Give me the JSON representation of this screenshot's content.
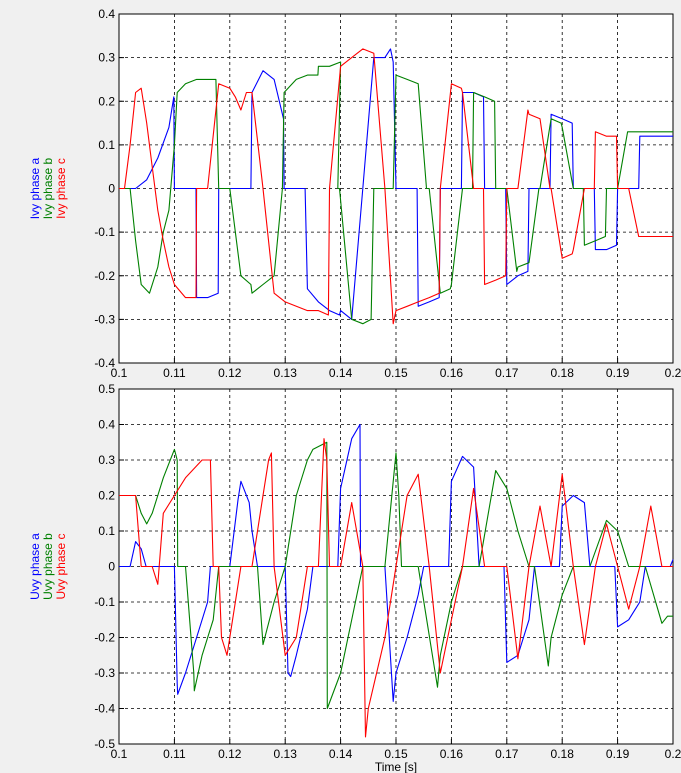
{
  "chart_data": [
    {
      "type": "line",
      "xlim": [
        0.1,
        0.2
      ],
      "ylim": [
        -0.4,
        0.4
      ],
      "xticks": [
        "0.1",
        "0.11",
        "0.12",
        "0.13",
        "0.14",
        "0.15",
        "0.16",
        "0.17",
        "0.18",
        "0.19",
        "0.2"
      ],
      "yticks": [
        "0.4",
        "0.3",
        "0.2",
        "0.1",
        "0",
        "-0.1",
        "-0.2",
        "-0.3",
        "-0.4"
      ],
      "xlabel": "",
      "ylabel_lines": [
        "Ivy phase a",
        "Ivy phase b",
        "Ivy phase c"
      ],
      "grid": true,
      "series": [
        {
          "name": "Ivy phase a",
          "color": "#0000ff",
          "x": [
            0.1,
            0.103,
            0.105,
            0.107,
            0.109,
            0.1099,
            0.11,
            0.112,
            0.1139,
            0.114,
            0.116,
            0.1179,
            0.118,
            0.12,
            0.122,
            0.1238,
            0.124,
            0.126,
            0.128,
            0.1297,
            0.1298,
            0.132,
            0.1336,
            0.134,
            0.136,
            0.138,
            0.1398,
            0.14,
            0.142,
            0.144,
            0.146,
            0.148,
            0.149,
            0.1495,
            0.15,
            0.152,
            0.1538,
            0.154,
            0.156,
            0.1578,
            0.158,
            0.16,
            0.1618,
            0.162,
            0.164,
            0.1658,
            0.166,
            0.168,
            0.1698,
            0.17,
            0.172,
            0.1738,
            0.174,
            0.176,
            0.1778,
            0.178,
            0.18,
            0.1818,
            0.182,
            0.184,
            0.1858,
            0.186,
            0.188,
            0.1898,
            0.19,
            0.192,
            0.1938,
            0.194,
            0.196,
            0.198,
            0.2
          ],
          "y": [
            0,
            0,
            0.02,
            0.07,
            0.14,
            0.21,
            0,
            0,
            0,
            -0.25,
            -0.25,
            -0.24,
            0,
            0,
            0,
            0,
            0.22,
            0.27,
            0.25,
            0.16,
            0,
            0,
            0,
            -0.23,
            -0.26,
            -0.28,
            -0.29,
            -0.28,
            -0.3,
            0,
            0.3,
            0.3,
            0.32,
            0.29,
            0,
            0,
            0,
            -0.27,
            -0.26,
            -0.25,
            0,
            0,
            0,
            0.22,
            0.22,
            0.21,
            0,
            0,
            0,
            -0.22,
            -0.2,
            -0.19,
            0,
            0,
            0,
            0.17,
            0.16,
            0.15,
            0,
            0,
            0,
            -0.14,
            -0.14,
            -0.13,
            0,
            0,
            0,
            0.12,
            0.12,
            0.12,
            0.12
          ]
        },
        {
          "name": "Ivy phase b",
          "color": "#008000",
          "x": [
            0.1,
            0.102,
            0.103,
            0.104,
            0.1055,
            0.107,
            0.108,
            0.109,
            0.11,
            0.1105,
            0.112,
            0.114,
            0.116,
            0.1175,
            0.118,
            0.12,
            0.122,
            0.1238,
            0.124,
            0.126,
            0.128,
            0.1295,
            0.1298,
            0.132,
            0.134,
            0.1359,
            0.136,
            0.138,
            0.14,
            0.1395,
            0.1398,
            0.142,
            0.144,
            0.1455,
            0.146,
            0.148,
            0.1495,
            0.15,
            0.152,
            0.154,
            0.1555,
            0.156,
            0.158,
            0.1598,
            0.16,
            0.162,
            0.1638,
            0.164,
            0.166,
            0.1678,
            0.168,
            0.17,
            0.1718,
            0.172,
            0.174,
            0.1758,
            0.176,
            0.178,
            0.1798,
            0.18,
            0.182,
            0.1838,
            0.184,
            0.186,
            0.1878,
            0.188,
            0.19,
            0.1918,
            0.192,
            0.194,
            0.196,
            0.198,
            0.2
          ],
          "y": [
            0,
            0,
            -0.12,
            -0.22,
            -0.24,
            -0.18,
            -0.1,
            -0.05,
            0.1,
            0.22,
            0.24,
            0.25,
            0.25,
            0.25,
            0,
            0,
            -0.2,
            -0.22,
            -0.24,
            -0.22,
            -0.2,
            0,
            0.22,
            0.25,
            0.26,
            0.26,
            0.28,
            0.28,
            0.29,
            0,
            0,
            -0.3,
            -0.31,
            -0.3,
            0,
            0,
            0,
            0.26,
            0.25,
            0.24,
            0,
            0,
            -0.24,
            -0.23,
            -0.22,
            0,
            0,
            0.22,
            0.21,
            0.2,
            0,
            0,
            -0.19,
            -0.18,
            -0.17,
            0,
            0,
            0.16,
            0.15,
            0.14,
            0,
            0,
            -0.13,
            -0.12,
            -0.11,
            0,
            0,
            0.13,
            0.13,
            0.13,
            0.13,
            0.13,
            0.13
          ]
        },
        {
          "name": "Ivy phase c",
          "color": "#ff0000",
          "x": [
            0.1,
            0.101,
            0.102,
            0.103,
            0.104,
            0.105,
            0.106,
            0.107,
            0.108,
            0.109,
            0.11,
            0.112,
            0.1139,
            0.114,
            0.116,
            0.118,
            0.12,
            0.121,
            0.122,
            0.123,
            0.124,
            0.126,
            0.128,
            0.13,
            0.132,
            0.134,
            0.136,
            0.1378,
            0.138,
            0.14,
            0.142,
            0.144,
            0.146,
            0.148,
            0.1495,
            0.15,
            0.152,
            0.154,
            0.156,
            0.1578,
            0.158,
            0.16,
            0.1618,
            0.162,
            0.164,
            0.1658,
            0.166,
            0.168,
            0.1698,
            0.17,
            0.172,
            0.1738,
            0.174,
            0.176,
            0.1778,
            0.178,
            0.18,
            0.1818,
            0.182,
            0.184,
            0.1858,
            0.186,
            0.188,
            0.1898,
            0.19,
            0.192,
            0.1938,
            0.194,
            0.196,
            0.198,
            0.2
          ],
          "y": [
            0,
            0,
            0.1,
            0.22,
            0.23,
            0.15,
            0.05,
            -0.05,
            -0.12,
            -0.18,
            -0.22,
            -0.25,
            -0.25,
            0,
            0,
            0.24,
            0.23,
            0.21,
            0.18,
            0.22,
            0.22,
            0,
            -0.24,
            -0.26,
            -0.27,
            -0.28,
            -0.28,
            -0.29,
            0,
            0.28,
            0.3,
            0.32,
            0.31,
            0,
            -0.31,
            -0.28,
            -0.27,
            -0.26,
            -0.25,
            -0.24,
            0,
            0.24,
            0.23,
            0.22,
            0,
            0,
            -0.22,
            -0.21,
            -0.2,
            0,
            0,
            0.18,
            0.17,
            0.16,
            0,
            0,
            -0.16,
            -0.15,
            -0.14,
            0,
            0,
            0.13,
            0.12,
            0.12,
            0,
            0,
            -0.11,
            -0.11,
            -0.11,
            -0.11,
            -0.11
          ]
        }
      ]
    },
    {
      "type": "line",
      "xlim": [
        0.1,
        0.2
      ],
      "ylim": [
        -0.5,
        0.5
      ],
      "xticks": [
        "0.1",
        "0.11",
        "0.12",
        "0.13",
        "0.14",
        "0.15",
        "0.16",
        "0.17",
        "0.18",
        "0.19",
        "0.2"
      ],
      "yticks": [
        "0.5",
        "0.4",
        "0.3",
        "0.2",
        "0.1",
        "0",
        "-0.1",
        "-0.2",
        "-0.3",
        "-0.4",
        "-0.5"
      ],
      "xlabel": "Time [s]",
      "ylabel_lines": [
        "Uvy phase a",
        "Uvy phase b",
        "Uvy phase c"
      ],
      "grid": true,
      "series": [
        {
          "name": "Uvy phase a",
          "color": "#0000ff",
          "x": [
            0.1,
            0.102,
            0.103,
            0.104,
            0.1049,
            0.105,
            0.11,
            0.1105,
            0.1106,
            0.112,
            0.114,
            0.116,
            0.1165,
            0.12,
            0.1215,
            0.122,
            0.1235,
            0.124,
            0.125,
            0.13,
            0.1305,
            0.131,
            0.132,
            0.134,
            0.135,
            0.1395,
            0.14,
            0.142,
            0.1435,
            0.1436,
            0.144,
            0.146,
            0.148,
            0.1495,
            0.15,
            0.152,
            0.154,
            0.155,
            0.1595,
            0.16,
            0.162,
            0.164,
            0.165,
            0.1695,
            0.17,
            0.172,
            0.174,
            0.175,
            0.1795,
            0.18,
            0.182,
            0.184,
            0.185,
            0.1895,
            0.19,
            0.192,
            0.194,
            0.195,
            0.1995,
            0.2
          ],
          "y": [
            0,
            0,
            0.07,
            0.05,
            0.0,
            0,
            0,
            -0.33,
            -0.36,
            -0.3,
            -0.2,
            -0.1,
            0,
            0,
            0.19,
            0.24,
            0.18,
            0.1,
            0,
            0,
            -0.3,
            -0.31,
            -0.25,
            -0.12,
            0,
            0,
            0.22,
            0.36,
            0.4,
            0,
            0,
            0,
            0,
            -0.38,
            -0.3,
            -0.2,
            -0.08,
            0,
            0,
            0.24,
            0.31,
            0.28,
            0,
            0,
            -0.27,
            -0.25,
            -0.15,
            0,
            0,
            0.17,
            0.2,
            0.18,
            0,
            0,
            -0.17,
            -0.15,
            -0.1,
            0,
            0,
            0.02
          ]
        },
        {
          "name": "Uvy phase b",
          "color": "#008000",
          "x": [
            0.1,
            0.102,
            0.103,
            0.104,
            0.105,
            0.106,
            0.107,
            0.108,
            0.11,
            0.1105,
            0.1106,
            0.112,
            0.1135,
            0.1136,
            0.115,
            0.117,
            0.118,
            0.12,
            0.122,
            0.124,
            0.125,
            0.126,
            0.128,
            0.13,
            0.132,
            0.134,
            0.135,
            0.1375,
            0.1376,
            0.14,
            0.142,
            0.144,
            0.146,
            0.148,
            0.15,
            0.1505,
            0.151,
            0.152,
            0.154,
            0.1575,
            0.158,
            0.16,
            0.162,
            0.164,
            0.165,
            0.168,
            0.17,
            0.172,
            0.174,
            0.175,
            0.1775,
            0.178,
            0.18,
            0.182,
            0.184,
            0.185,
            0.188,
            0.19,
            0.192,
            0.194,
            0.195,
            0.198,
            0.199,
            0.2
          ],
          "y": [
            0.2,
            0.2,
            0.2,
            0.15,
            0.12,
            0.15,
            0.2,
            0.25,
            0.33,
            0.3,
            0,
            0,
            -0.3,
            -0.35,
            -0.25,
            -0.15,
            0,
            0,
            0,
            0,
            0,
            -0.22,
            -0.1,
            0,
            0.2,
            0.3,
            0.33,
            0.35,
            -0.4,
            -0.3,
            -0.15,
            0,
            0,
            0,
            0.32,
            0.2,
            0,
            0,
            0,
            -0.34,
            -0.25,
            -0.1,
            0,
            0,
            0,
            0.27,
            0.22,
            0.1,
            0,
            0,
            -0.28,
            -0.2,
            -0.08,
            0,
            0,
            0,
            0.13,
            0.1,
            0,
            0,
            0,
            -0.16,
            -0.14,
            -0.14
          ]
        },
        {
          "name": "Uvy phase c",
          "color": "#ff0000",
          "x": [
            0.1,
            0.102,
            0.103,
            0.104,
            0.106,
            0.107,
            0.108,
            0.11,
            0.112,
            0.115,
            0.1165,
            0.117,
            0.118,
            0.1185,
            0.1195,
            0.12,
            0.122,
            0.124,
            0.126,
            0.127,
            0.1275,
            0.128,
            0.13,
            0.132,
            0.134,
            0.136,
            0.137,
            0.1375,
            0.138,
            0.14,
            0.142,
            0.144,
            0.1445,
            0.145,
            0.148,
            0.15,
            0.152,
            0.154,
            0.156,
            0.158,
            0.16,
            0.162,
            0.164,
            0.166,
            0.168,
            0.17,
            0.172,
            0.174,
            0.176,
            0.178,
            0.18,
            0.182,
            0.184,
            0.186,
            0.188,
            0.19,
            0.192,
            0.194,
            0.196,
            0.198,
            0.2
          ],
          "y": [
            0.2,
            0.2,
            0.2,
            0,
            0,
            -0.05,
            0.15,
            0.2,
            0.25,
            0.3,
            0.3,
            0,
            0,
            -0.2,
            -0.25,
            -0.2,
            0,
            0,
            0.2,
            0.3,
            0.32,
            0,
            -0.25,
            -0.2,
            0,
            0,
            0.36,
            0.3,
            0,
            0,
            0.18,
            0,
            -0.48,
            -0.4,
            -0.2,
            0,
            0.2,
            0.26,
            0,
            -0.3,
            -0.15,
            0,
            0.22,
            0,
            0,
            0,
            -0.26,
            0,
            0.17,
            0,
            0.26,
            0,
            -0.22,
            0,
            0.12,
            0,
            -0.12,
            0,
            0.17,
            0,
            0
          ]
        }
      ]
    }
  ]
}
